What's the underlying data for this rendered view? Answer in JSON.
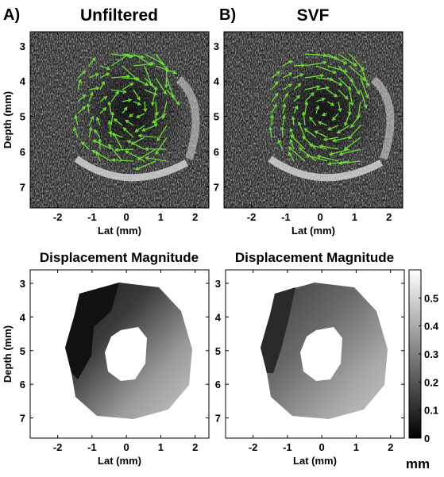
{
  "panels": {
    "A": {
      "letter": "A)",
      "title": "Unfiltered"
    },
    "B": {
      "letter": "B)",
      "title": "SVF"
    },
    "C": {
      "title": "Displacement Magnitude"
    },
    "D": {
      "title": "Displacement Magnitude"
    }
  },
  "axes": {
    "xlabel": "Lat (mm)",
    "ylabel": "Depth (mm)",
    "xlim": [
      -2.8,
      2.4
    ],
    "ylim": [
      2.6,
      7.6
    ],
    "xticks": [
      -2,
      -1,
      0,
      1,
      2
    ],
    "yticks": [
      3,
      4,
      5,
      6,
      7
    ]
  },
  "colorbar": {
    "unit": "mm",
    "range": [
      0,
      0.6
    ],
    "ticks": [
      0,
      0.1,
      0.2,
      0.3,
      0.4,
      0.5
    ]
  },
  "colors": {
    "vectors": "#6fdc3a",
    "hole": "#ffffff",
    "background": "#ffffff"
  }
}
